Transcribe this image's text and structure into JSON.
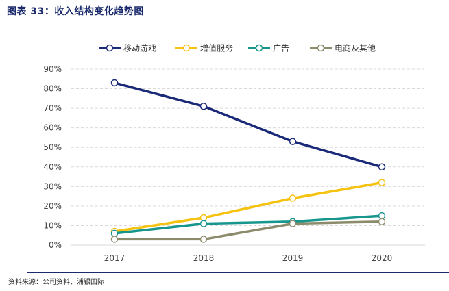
{
  "figure": {
    "title": "图表 33：收入结构变化趋势图",
    "source": "资料来源：公司资料、浦银国际"
  },
  "chart_data": {
    "type": "line",
    "title": "",
    "xlabel": "",
    "ylabel": "",
    "categories": [
      "2017",
      "2018",
      "2019",
      "2020"
    ],
    "ylim": [
      0,
      90
    ],
    "ytick_step": 10,
    "y_format": "percent",
    "grid": "horizontal dashed",
    "legend_position": "top",
    "series": [
      {
        "name": "移动游戏",
        "color": "#1a2a78",
        "values": [
          83,
          71,
          53,
          40
        ]
      },
      {
        "name": "增值服务",
        "color": "#f5c20f",
        "values": [
          7,
          14,
          24,
          32
        ]
      },
      {
        "name": "广告",
        "color": "#17968e",
        "values": [
          6,
          11,
          12,
          15
        ]
      },
      {
        "name": "电商及其他",
        "color": "#8c8c6c",
        "values": [
          3,
          3,
          11,
          12
        ]
      }
    ]
  }
}
